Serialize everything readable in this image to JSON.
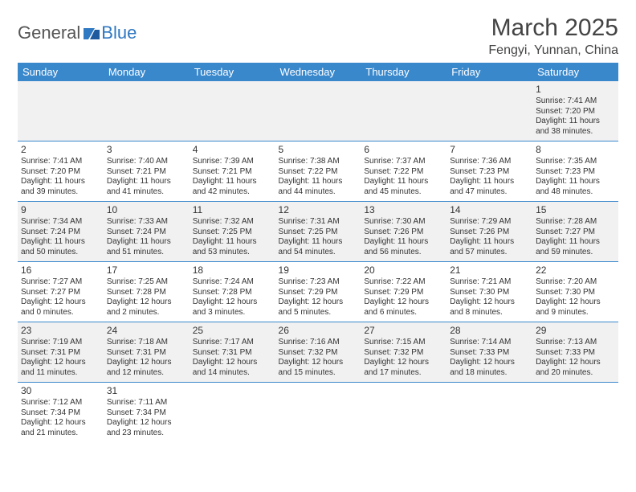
{
  "logo": {
    "text1": "General",
    "text2": "Blue",
    "mark_color": "#2f78c2"
  },
  "header": {
    "month": "March 2025",
    "location": "Fengyi, Yunnan, China"
  },
  "colors": {
    "header_bg": "#3a88cc",
    "header_text": "#ffffff",
    "row_odd_bg": "#f1f1f1",
    "row_even_bg": "#ffffff",
    "border": "#3a88cc"
  },
  "typography": {
    "month_title_size": 30,
    "location_size": 16,
    "weekday_size": 13,
    "daynum_size": 12,
    "cell_text_size": 10
  },
  "weekdays": [
    "Sunday",
    "Monday",
    "Tuesday",
    "Wednesday",
    "Thursday",
    "Friday",
    "Saturday"
  ],
  "weeks": [
    [
      null,
      null,
      null,
      null,
      null,
      null,
      {
        "day": "1",
        "sunrise": "Sunrise: 7:41 AM",
        "sunset": "Sunset: 7:20 PM",
        "daylight": "Daylight: 11 hours and 38 minutes."
      }
    ],
    [
      {
        "day": "2",
        "sunrise": "Sunrise: 7:41 AM",
        "sunset": "Sunset: 7:20 PM",
        "daylight": "Daylight: 11 hours and 39 minutes."
      },
      {
        "day": "3",
        "sunrise": "Sunrise: 7:40 AM",
        "sunset": "Sunset: 7:21 PM",
        "daylight": "Daylight: 11 hours and 41 minutes."
      },
      {
        "day": "4",
        "sunrise": "Sunrise: 7:39 AM",
        "sunset": "Sunset: 7:21 PM",
        "daylight": "Daylight: 11 hours and 42 minutes."
      },
      {
        "day": "5",
        "sunrise": "Sunrise: 7:38 AM",
        "sunset": "Sunset: 7:22 PM",
        "daylight": "Daylight: 11 hours and 44 minutes."
      },
      {
        "day": "6",
        "sunrise": "Sunrise: 7:37 AM",
        "sunset": "Sunset: 7:22 PM",
        "daylight": "Daylight: 11 hours and 45 minutes."
      },
      {
        "day": "7",
        "sunrise": "Sunrise: 7:36 AM",
        "sunset": "Sunset: 7:23 PM",
        "daylight": "Daylight: 11 hours and 47 minutes."
      },
      {
        "day": "8",
        "sunrise": "Sunrise: 7:35 AM",
        "sunset": "Sunset: 7:23 PM",
        "daylight": "Daylight: 11 hours and 48 minutes."
      }
    ],
    [
      {
        "day": "9",
        "sunrise": "Sunrise: 7:34 AM",
        "sunset": "Sunset: 7:24 PM",
        "daylight": "Daylight: 11 hours and 50 minutes."
      },
      {
        "day": "10",
        "sunrise": "Sunrise: 7:33 AM",
        "sunset": "Sunset: 7:24 PM",
        "daylight": "Daylight: 11 hours and 51 minutes."
      },
      {
        "day": "11",
        "sunrise": "Sunrise: 7:32 AM",
        "sunset": "Sunset: 7:25 PM",
        "daylight": "Daylight: 11 hours and 53 minutes."
      },
      {
        "day": "12",
        "sunrise": "Sunrise: 7:31 AM",
        "sunset": "Sunset: 7:25 PM",
        "daylight": "Daylight: 11 hours and 54 minutes."
      },
      {
        "day": "13",
        "sunrise": "Sunrise: 7:30 AM",
        "sunset": "Sunset: 7:26 PM",
        "daylight": "Daylight: 11 hours and 56 minutes."
      },
      {
        "day": "14",
        "sunrise": "Sunrise: 7:29 AM",
        "sunset": "Sunset: 7:26 PM",
        "daylight": "Daylight: 11 hours and 57 minutes."
      },
      {
        "day": "15",
        "sunrise": "Sunrise: 7:28 AM",
        "sunset": "Sunset: 7:27 PM",
        "daylight": "Daylight: 11 hours and 59 minutes."
      }
    ],
    [
      {
        "day": "16",
        "sunrise": "Sunrise: 7:27 AM",
        "sunset": "Sunset: 7:27 PM",
        "daylight": "Daylight: 12 hours and 0 minutes."
      },
      {
        "day": "17",
        "sunrise": "Sunrise: 7:25 AM",
        "sunset": "Sunset: 7:28 PM",
        "daylight": "Daylight: 12 hours and 2 minutes."
      },
      {
        "day": "18",
        "sunrise": "Sunrise: 7:24 AM",
        "sunset": "Sunset: 7:28 PM",
        "daylight": "Daylight: 12 hours and 3 minutes."
      },
      {
        "day": "19",
        "sunrise": "Sunrise: 7:23 AM",
        "sunset": "Sunset: 7:29 PM",
        "daylight": "Daylight: 12 hours and 5 minutes."
      },
      {
        "day": "20",
        "sunrise": "Sunrise: 7:22 AM",
        "sunset": "Sunset: 7:29 PM",
        "daylight": "Daylight: 12 hours and 6 minutes."
      },
      {
        "day": "21",
        "sunrise": "Sunrise: 7:21 AM",
        "sunset": "Sunset: 7:30 PM",
        "daylight": "Daylight: 12 hours and 8 minutes."
      },
      {
        "day": "22",
        "sunrise": "Sunrise: 7:20 AM",
        "sunset": "Sunset: 7:30 PM",
        "daylight": "Daylight: 12 hours and 9 minutes."
      }
    ],
    [
      {
        "day": "23",
        "sunrise": "Sunrise: 7:19 AM",
        "sunset": "Sunset: 7:31 PM",
        "daylight": "Daylight: 12 hours and 11 minutes."
      },
      {
        "day": "24",
        "sunrise": "Sunrise: 7:18 AM",
        "sunset": "Sunset: 7:31 PM",
        "daylight": "Daylight: 12 hours and 12 minutes."
      },
      {
        "day": "25",
        "sunrise": "Sunrise: 7:17 AM",
        "sunset": "Sunset: 7:31 PM",
        "daylight": "Daylight: 12 hours and 14 minutes."
      },
      {
        "day": "26",
        "sunrise": "Sunrise: 7:16 AM",
        "sunset": "Sunset: 7:32 PM",
        "daylight": "Daylight: 12 hours and 15 minutes."
      },
      {
        "day": "27",
        "sunrise": "Sunrise: 7:15 AM",
        "sunset": "Sunset: 7:32 PM",
        "daylight": "Daylight: 12 hours and 17 minutes."
      },
      {
        "day": "28",
        "sunrise": "Sunrise: 7:14 AM",
        "sunset": "Sunset: 7:33 PM",
        "daylight": "Daylight: 12 hours and 18 minutes."
      },
      {
        "day": "29",
        "sunrise": "Sunrise: 7:13 AM",
        "sunset": "Sunset: 7:33 PM",
        "daylight": "Daylight: 12 hours and 20 minutes."
      }
    ],
    [
      {
        "day": "30",
        "sunrise": "Sunrise: 7:12 AM",
        "sunset": "Sunset: 7:34 PM",
        "daylight": "Daylight: 12 hours and 21 minutes."
      },
      {
        "day": "31",
        "sunrise": "Sunrise: 7:11 AM",
        "sunset": "Sunset: 7:34 PM",
        "daylight": "Daylight: 12 hours and 23 minutes."
      },
      null,
      null,
      null,
      null,
      null
    ]
  ]
}
